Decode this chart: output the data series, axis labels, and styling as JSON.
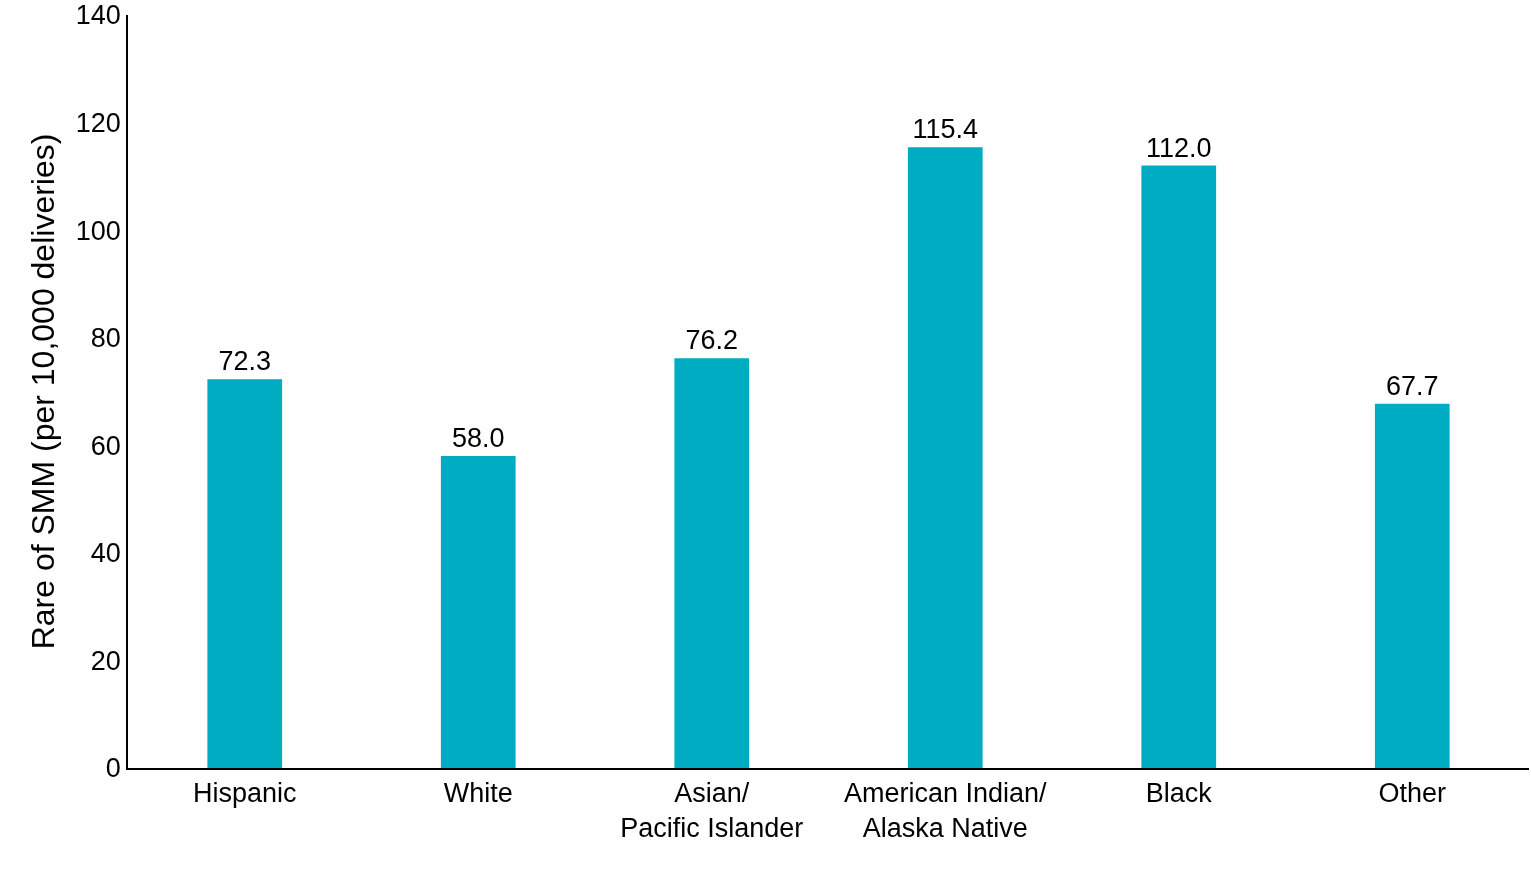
{
  "chart_data": {
    "type": "bar",
    "ylabel": "Rare of SMM (per 10,000 deliveries)",
    "categories": [
      "Hispanic",
      "White",
      "Asian/ Pacific Islander",
      "American Indian/ Alaska Native",
      "Black",
      "Other"
    ],
    "values": [
      72.3,
      58.0,
      76.2,
      115.4,
      112.0,
      67.7
    ],
    "value_labels": [
      "72.3",
      "58.0",
      "76.2",
      "115.4",
      "112.0",
      "67.7"
    ],
    "color": "#00acc1",
    "ylim": [
      0,
      140
    ],
    "yticks": [
      0,
      20,
      40,
      60,
      80,
      100,
      120,
      140
    ],
    "grid": false
  }
}
